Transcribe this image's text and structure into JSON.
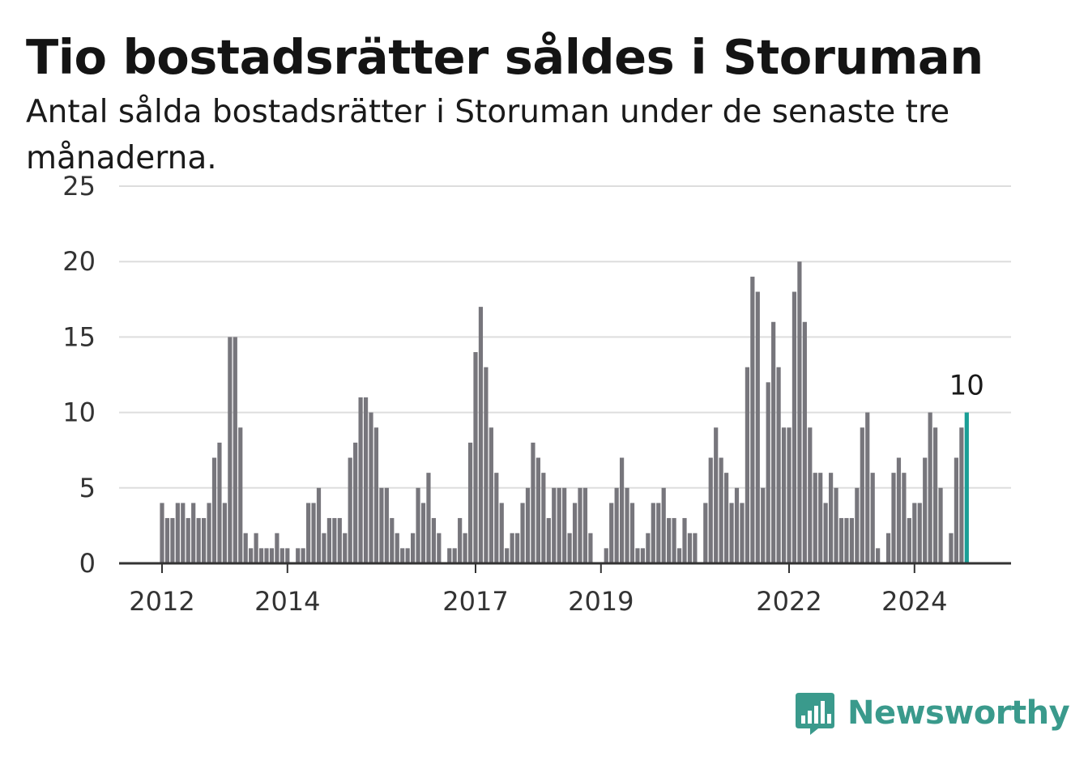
{
  "title": "Tio bostadsrätter såldes i Storuman",
  "subtitle": "Antal sålda bostadsrätter i Storuman under de senaste tre månaderna.",
  "logo": {
    "text": "Newsworthy",
    "icon": "newsworthy-bar-chart-icon",
    "color": "#3a9a8c"
  },
  "colors": {
    "bar": "#77767c",
    "highlight": "#1a9e96",
    "grid": "#dddddd",
    "axis": "#333333"
  },
  "chart_data": {
    "type": "bar",
    "title": "Tio bostadsrätter såldes i Storuman",
    "xlabel": "",
    "ylabel": "",
    "ylim": [
      0,
      25
    ],
    "yticks": [
      0,
      5,
      10,
      15,
      20,
      25
    ],
    "grid": true,
    "x_tick_labels": [
      {
        "label": "2012",
        "index": 0
      },
      {
        "label": "2014",
        "index": 24
      },
      {
        "label": "2017",
        "index": 60
      },
      {
        "label": "2019",
        "index": 84
      },
      {
        "label": "2022",
        "index": 120
      },
      {
        "label": "2024",
        "index": 144
      }
    ],
    "values": [
      4,
      3,
      3,
      4,
      4,
      3,
      4,
      3,
      3,
      4,
      7,
      8,
      4,
      15,
      15,
      9,
      2,
      1,
      2,
      1,
      1,
      1,
      2,
      1,
      1,
      0,
      1,
      1,
      4,
      4,
      5,
      2,
      3,
      3,
      3,
      2,
      7,
      8,
      11,
      11,
      10,
      9,
      5,
      5,
      3,
      2,
      1,
      1,
      2,
      5,
      4,
      6,
      3,
      2,
      0,
      1,
      1,
      3,
      2,
      8,
      14,
      17,
      13,
      9,
      6,
      4,
      1,
      2,
      2,
      4,
      5,
      8,
      7,
      6,
      3,
      5,
      5,
      5,
      2,
      4,
      5,
      5,
      2,
      0,
      0,
      1,
      4,
      5,
      7,
      5,
      4,
      1,
      1,
      2,
      4,
      4,
      5,
      3,
      3,
      1,
      3,
      2,
      2,
      0,
      4,
      7,
      9,
      7,
      6,
      4,
      5,
      4,
      13,
      19,
      18,
      5,
      12,
      16,
      13,
      9,
      9,
      18,
      20,
      16,
      9,
      6,
      6,
      4,
      6,
      5,
      3,
      3,
      3,
      5,
      9,
      10,
      6,
      1,
      0,
      2,
      6,
      7,
      6,
      3,
      4,
      4,
      7,
      10,
      9,
      5,
      0,
      2,
      7,
      9,
      10
    ],
    "highlight_last": true,
    "data_labels": [
      {
        "index": 154,
        "value": 10,
        "text": "10"
      }
    ]
  }
}
